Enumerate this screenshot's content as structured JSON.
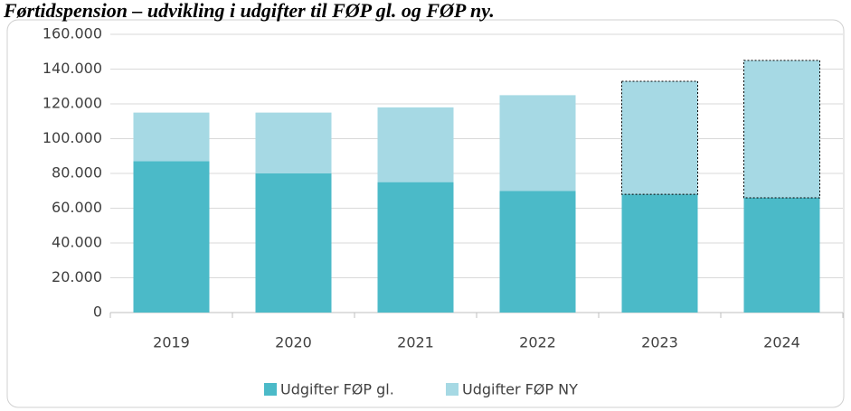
{
  "chart_data": {
    "type": "stacked-bar",
    "title": "Førtidspension – udvikling i udgifter til FØP gl. og FØP ny.",
    "categories": [
      "2019",
      "2020",
      "2021",
      "2022",
      "2023",
      "2024"
    ],
    "series": [
      {
        "name": "Udgifter FØP gl.",
        "color": "#4bbac8",
        "values": [
          87000,
          80000,
          75000,
          70000,
          68000,
          66000
        ]
      },
      {
        "name": "Udgifter FØP NY",
        "color": "#a6d9e4",
        "values": [
          28000,
          35000,
          43000,
          55000,
          65000,
          79000
        ],
        "dashed_outline": [
          false,
          false,
          false,
          false,
          true,
          true
        ]
      }
    ],
    "ylim": [
      0,
      160000
    ],
    "yticks": [
      0,
      {
        "value": 20000,
        "label": "20.000"
      },
      {
        "value": 40000,
        "label": "40.000"
      },
      {
        "value": 60000,
        "label": "60.000"
      },
      {
        "value": 80000,
        "label": "80.000"
      },
      {
        "value": 100000,
        "label": "100.000"
      },
      {
        "value": 120000,
        "label": "120.000"
      },
      {
        "value": 140000,
        "label": "140.000"
      },
      {
        "value": 160000,
        "label": "160.000"
      }
    ],
    "grid": true,
    "legend": "bottom"
  }
}
